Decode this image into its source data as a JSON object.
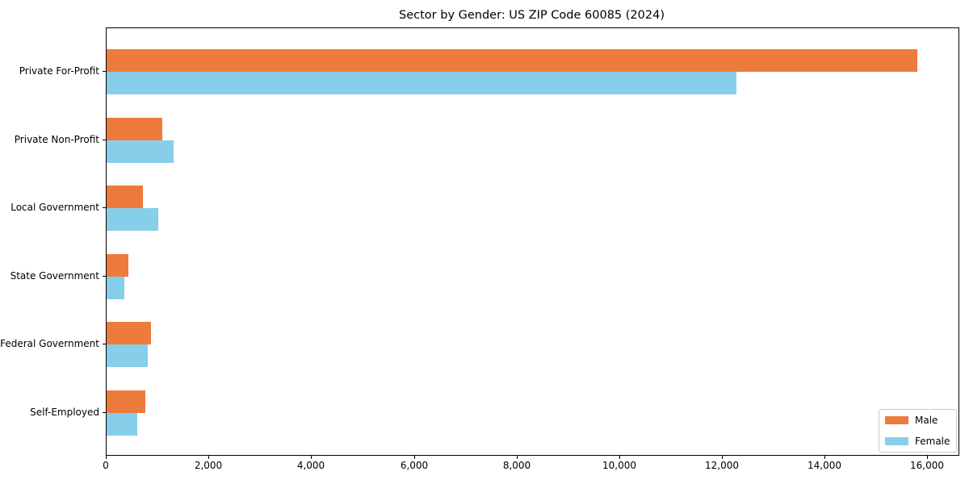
{
  "chart_data": {
    "type": "bar",
    "orientation": "horizontal",
    "title": "Sector by Gender: US ZIP Code 60085 (2024)",
    "categories": [
      "Private For-Profit",
      "Private Non-Profit",
      "Local Government",
      "State Government",
      "Federal Government",
      "Self-Employed"
    ],
    "series": [
      {
        "name": "Male",
        "color": "#EC7B3C",
        "values": [
          15790,
          1080,
          700,
          430,
          870,
          760
        ]
      },
      {
        "name": "Female",
        "color": "#87CEEB",
        "values": [
          12270,
          1300,
          1000,
          340,
          800,
          590
        ]
      }
    ],
    "xlim": [
      0,
      16590
    ],
    "xticks": [
      0,
      2000,
      4000,
      6000,
      8000,
      10000,
      12000,
      14000,
      16000
    ],
    "xtick_labels": [
      "0",
      "2,000",
      "4,000",
      "6,000",
      "8,000",
      "10,000",
      "12,000",
      "14,000",
      "16,000"
    ],
    "xlabel": "",
    "ylabel": "",
    "grid": false,
    "legend_position": "lower right"
  }
}
